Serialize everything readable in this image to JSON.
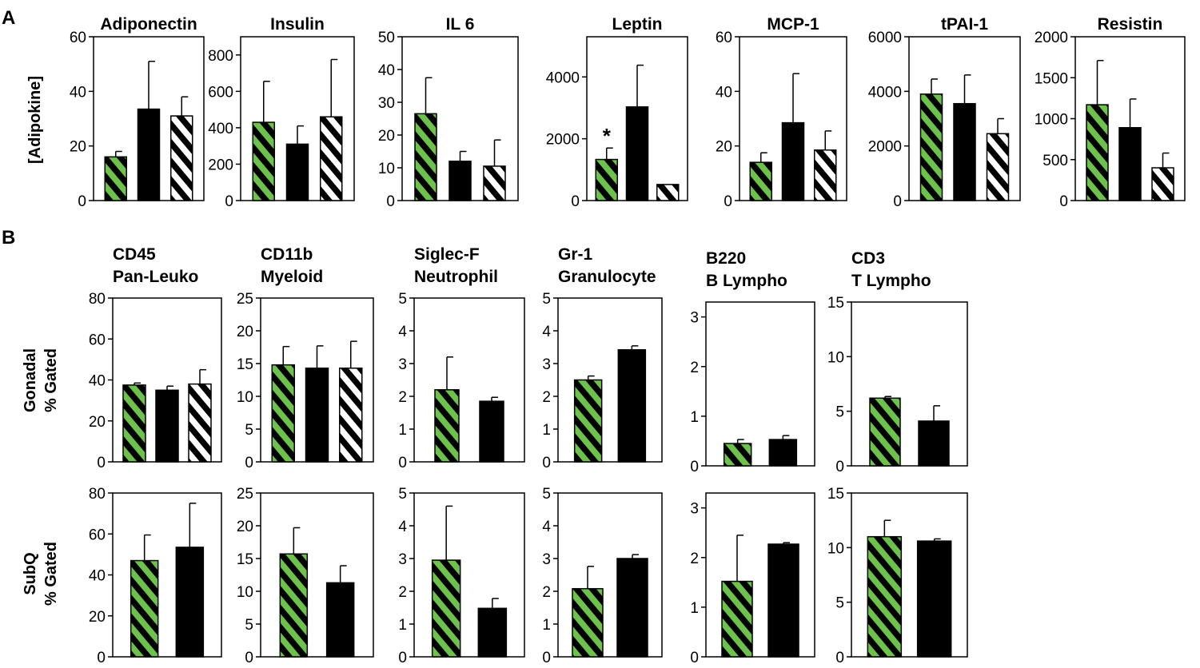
{
  "panel_labels": {
    "a": "A",
    "b": "B"
  },
  "y_labels": {
    "a": "[Adipokine]",
    "b_row1_line1": "Gonadal",
    "b_row1_line2": "% Gated",
    "b_row2_line1": "SubQ",
    "b_row2_line2": "% Gated"
  },
  "colors": {
    "green": "#6cc24a",
    "black": "#000000",
    "white": "#ffffff"
  },
  "chart_data": [
    {
      "type": "bar",
      "id": "adiponectin",
      "title": "Adiponectin",
      "ylim": [
        0,
        60
      ],
      "yticks": [
        0,
        20,
        40,
        60
      ],
      "values": [
        16,
        33.5,
        31
      ],
      "errors": [
        2,
        17.5,
        7
      ],
      "fills": [
        "green",
        "black",
        "white"
      ],
      "annotations": []
    },
    {
      "type": "bar",
      "id": "insulin",
      "title": "Insulin",
      "ylim": [
        0,
        900
      ],
      "yticks": [
        0,
        200,
        400,
        600,
        800
      ],
      "values": [
        430,
        310,
        460
      ],
      "errors": [
        225,
        100,
        315
      ],
      "fills": [
        "green",
        "black",
        "white"
      ],
      "annotations": []
    },
    {
      "type": "bar",
      "id": "il6",
      "title": "IL 6",
      "ylim": [
        0,
        50
      ],
      "yticks": [
        0,
        10,
        20,
        30,
        40,
        50
      ],
      "values": [
        26.5,
        12,
        10.5
      ],
      "errors": [
        11,
        3,
        8
      ],
      "fills": [
        "green",
        "black",
        "white"
      ],
      "annotations": []
    },
    {
      "type": "bar",
      "id": "leptin",
      "title": "Leptin",
      "ylim": [
        0,
        5300
      ],
      "yticks": [
        0,
        2000,
        4000
      ],
      "values": [
        1330,
        3030,
        520
      ],
      "errors": [
        370,
        1350,
        0
      ],
      "fills": [
        "green",
        "black",
        "white"
      ],
      "annotations": [
        "*",
        "",
        ""
      ]
    },
    {
      "type": "bar",
      "id": "mcp1",
      "title": "MCP-1",
      "ylim": [
        0,
        60
      ],
      "yticks": [
        0,
        20,
        40,
        60
      ],
      "values": [
        14,
        28.5,
        18.5
      ],
      "errors": [
        3.5,
        18,
        7
      ],
      "fills": [
        "green",
        "black",
        "white"
      ],
      "annotations": []
    },
    {
      "type": "bar",
      "id": "tpai1",
      "title": "tPAI-1",
      "ylim": [
        0,
        6000
      ],
      "yticks": [
        0,
        2000,
        4000,
        6000
      ],
      "values": [
        3900,
        3550,
        2450
      ],
      "errors": [
        550,
        1050,
        550
      ],
      "fills": [
        "green",
        "black",
        "white"
      ],
      "annotations": []
    },
    {
      "type": "bar",
      "id": "resistin",
      "title": "Resistin",
      "ylim": [
        0,
        2000
      ],
      "yticks": [
        0,
        500,
        1000,
        1500,
        2000
      ],
      "values": [
        1170,
        890,
        400
      ],
      "errors": [
        540,
        350,
        180
      ],
      "fills": [
        "green",
        "black",
        "white"
      ],
      "annotations": []
    },
    {
      "type": "bar",
      "id": "cd45-gonadal",
      "title": "CD45",
      "title2": "Pan-Leuko",
      "ylim": [
        0,
        80
      ],
      "yticks": [
        0,
        20,
        40,
        60,
        80
      ],
      "values": [
        37.5,
        35,
        38
      ],
      "errors": [
        1,
        2,
        7
      ],
      "fills": [
        "green",
        "black",
        "white"
      ]
    },
    {
      "type": "bar",
      "id": "cd11b-gonadal",
      "title": "CD11b",
      "title2": "Myeloid",
      "ylim": [
        0,
        25
      ],
      "yticks": [
        0,
        5,
        10,
        15,
        20,
        25
      ],
      "values": [
        14.8,
        14.3,
        14.3
      ],
      "errors": [
        2.8,
        3.4,
        4.1
      ],
      "fills": [
        "green",
        "black",
        "white"
      ]
    },
    {
      "type": "bar",
      "id": "siglecf-gonadal",
      "title": "Siglec-F",
      "title2": "Neutrophil",
      "ylim": [
        0,
        5
      ],
      "yticks": [
        0,
        1,
        2,
        3,
        4,
        5
      ],
      "values": [
        2.2,
        1.85
      ],
      "errors": [
        1,
        0.12
      ],
      "fills": [
        "green",
        "black"
      ]
    },
    {
      "type": "bar",
      "id": "gr1-gonadal",
      "title": "Gr-1",
      "title2": "Granulocyte",
      "ylim": [
        0,
        5
      ],
      "yticks": [
        0,
        1,
        2,
        3,
        4,
        5
      ],
      "values": [
        2.5,
        3.42
      ],
      "errors": [
        0.12,
        0.12
      ],
      "fills": [
        "green",
        "black"
      ]
    },
    {
      "type": "bar",
      "id": "b220-gonadal",
      "title": "B220",
      "title2": "B Lympho",
      "ylim": [
        0,
        3.3
      ],
      "yticks": [
        0,
        1,
        2,
        3
      ],
      "values": [
        0.45,
        0.53
      ],
      "errors": [
        0.08,
        0.08
      ],
      "fills": [
        "green",
        "black"
      ]
    },
    {
      "type": "bar",
      "id": "cd3-gonadal",
      "title": "CD3",
      "title2": "T Lympho",
      "ylim": [
        0,
        15
      ],
      "yticks": [
        0,
        5,
        10,
        15
      ],
      "values": [
        6.2,
        4.1
      ],
      "errors": [
        0.15,
        1.4
      ],
      "fills": [
        "green",
        "black"
      ]
    },
    {
      "type": "bar",
      "id": "cd45-subq",
      "ylim": [
        0,
        80
      ],
      "yticks": [
        0,
        20,
        40,
        60,
        80
      ],
      "values": [
        47,
        53.5
      ],
      "errors": [
        12.5,
        21.5
      ],
      "fills": [
        "green",
        "black"
      ]
    },
    {
      "type": "bar",
      "id": "cd11b-subq",
      "ylim": [
        0,
        25
      ],
      "yticks": [
        0,
        5,
        10,
        15,
        20,
        25
      ],
      "values": [
        15.7,
        11.3
      ],
      "errors": [
        4,
        2.6
      ],
      "fills": [
        "green",
        "black"
      ]
    },
    {
      "type": "bar",
      "id": "siglecf-subq",
      "ylim": [
        0,
        5
      ],
      "yticks": [
        0,
        1,
        2,
        3,
        4,
        5
      ],
      "values": [
        2.95,
        1.48
      ],
      "errors": [
        1.65,
        0.3
      ],
      "fills": [
        "green",
        "black"
      ]
    },
    {
      "type": "bar",
      "id": "gr1-subq",
      "ylim": [
        0,
        5
      ],
      "yticks": [
        0,
        1,
        2,
        3,
        4,
        5
      ],
      "values": [
        2.08,
        3
      ],
      "errors": [
        0.68,
        0.12
      ],
      "fills": [
        "green",
        "black"
      ]
    },
    {
      "type": "bar",
      "id": "b220-subq",
      "ylim": [
        0,
        3.3
      ],
      "yticks": [
        0,
        1,
        2,
        3
      ],
      "values": [
        1.52,
        2.27
      ],
      "errors": [
        0.93,
        0.03
      ],
      "fills": [
        "green",
        "black"
      ]
    },
    {
      "type": "bar",
      "id": "cd3-subq",
      "ylim": [
        0,
        15
      ],
      "yticks": [
        0,
        5,
        10,
        15
      ],
      "values": [
        11,
        10.6
      ],
      "errors": [
        1.5,
        0.2
      ],
      "fills": [
        "green",
        "black"
      ]
    }
  ]
}
